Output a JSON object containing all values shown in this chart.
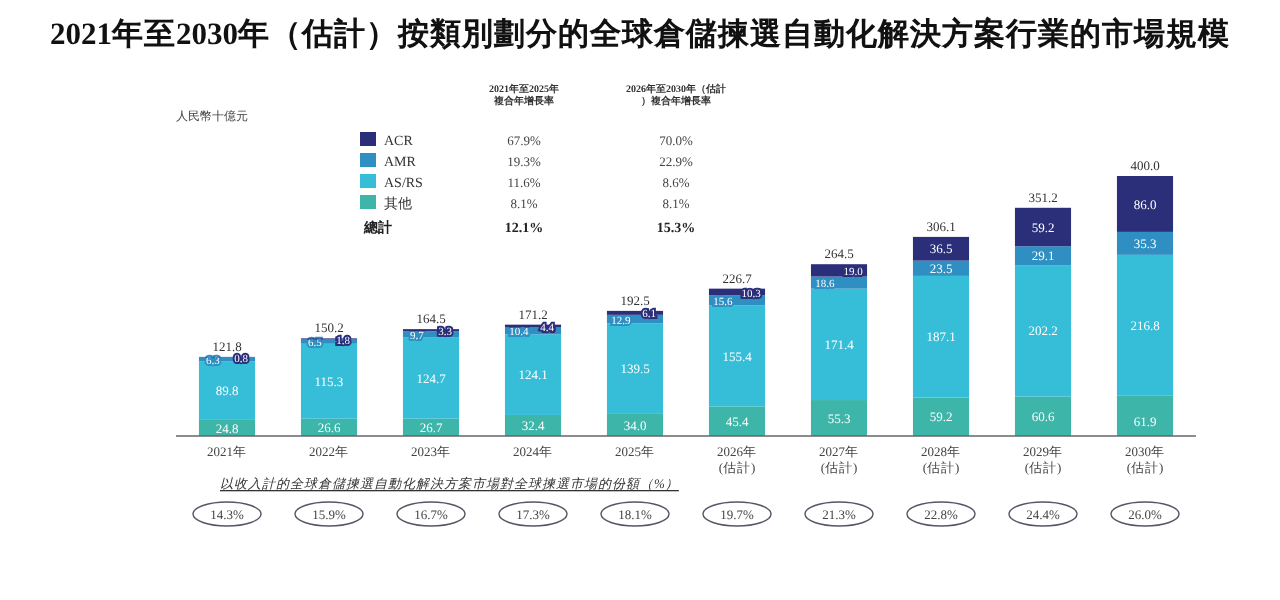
{
  "chart_data": {
    "type": "bar",
    "stacked": true,
    "legend": "top left",
    "title": "2021年至2030年（估計）按類別劃分的全球倉儲揀選自動化解決方案行業的市場規模",
    "ylabel": "人民幣十億元",
    "categories": [
      "2021年",
      "2022年",
      "2023年",
      "2024年",
      "2025年",
      "2026年\n(估計)",
      "2027年\n(估計)",
      "2028年\n(估計)",
      "2029年\n(估計)",
      "2030年\n(估計)"
    ],
    "series": [
      {
        "name": "其他",
        "color": "#3db5a9",
        "values": [
          24.8,
          26.6,
          26.7,
          32.4,
          34.0,
          45.4,
          55.3,
          59.2,
          60.6,
          61.9
        ],
        "value_labels": [
          "24.8",
          "26.6",
          "26.7",
          "32.4",
          "34.0",
          "45.4",
          "55.3",
          "59.2",
          "60.6",
          "61.9"
        ]
      },
      {
        "name": "AS/RS",
        "color": "#36bdd8",
        "values": [
          89.8,
          115.3,
          124.7,
          124.1,
          139.5,
          155.4,
          171.4,
          187.1,
          202.2,
          216.8
        ],
        "value_labels": [
          "89.8",
          "115.3",
          "124.7",
          "124.1",
          "139.5",
          "155.4",
          "171.4",
          "187.1",
          "202.2",
          "216.8"
        ]
      },
      {
        "name": "AMR",
        "color": "#2f8fc2",
        "values": [
          6.3,
          6.5,
          9.7,
          10.4,
          12.9,
          15.6,
          18.6,
          23.5,
          29.1,
          35.3
        ],
        "value_labels": [
          "6.3",
          "6.5",
          "9.7",
          "10.4",
          "12.9",
          "15.6",
          "18.6",
          "23.5",
          "29.1",
          "35.3"
        ]
      },
      {
        "name": "ACR",
        "color": "#2b2f7a",
        "values": [
          0.8,
          1.8,
          3.3,
          4.4,
          6.1,
          10.3,
          19.0,
          36.5,
          59.2,
          86.0
        ],
        "value_labels": [
          "0.8",
          "1.8",
          "3.3",
          "4.4",
          "6.1",
          "10.3",
          "19.0",
          "36.5",
          "59.2",
          "86.0"
        ]
      }
    ],
    "totals": [
      "121.8",
      "150.2",
      "164.5",
      "171.2",
      "192.5",
      "226.7",
      "264.5",
      "306.1",
      "351.2",
      "400.0"
    ],
    "annotations": [
      "2021年至2025年複合年增長率",
      "2026年至2030年（估計）複合年增長率",
      "67.9%",
      "70.0%",
      "19.3%",
      "22.9%",
      "11.6%",
      "8.6%",
      "8.1%",
      "8.1%",
      "總計",
      "12.1%",
      "15.3%",
      "以收入計的全球倉儲揀選自動化解決方案市場對全球揀選市場的份額（%）",
      "14.3%",
      "15.9%",
      "16.7%",
      "17.3%",
      "18.1%",
      "19.7%",
      "21.3%",
      "22.8%",
      "24.4%",
      "26.0%"
    ]
  }
}
